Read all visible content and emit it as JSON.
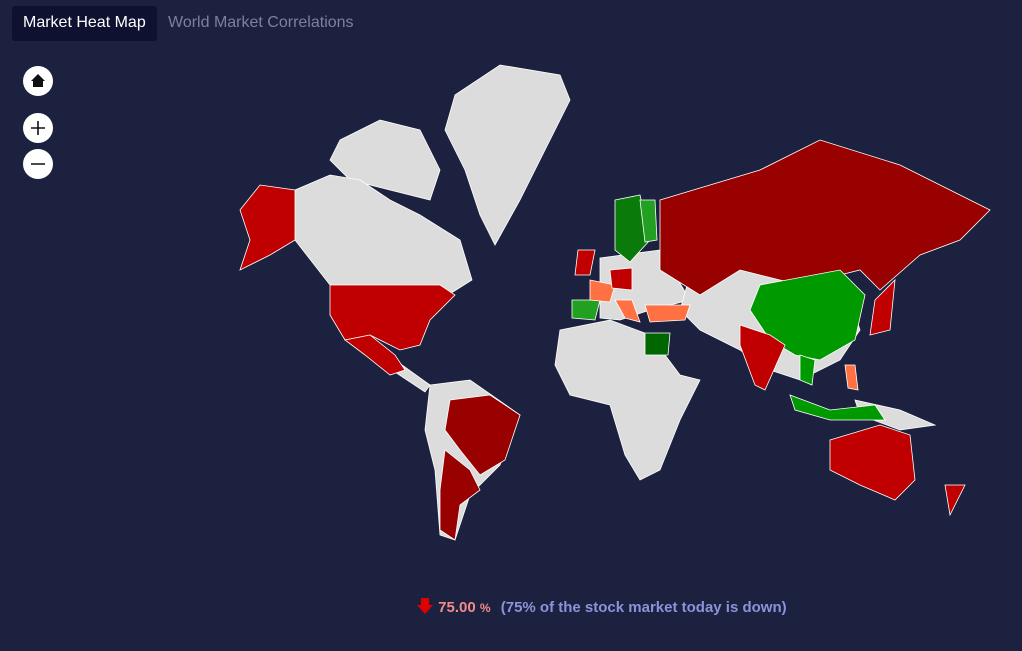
{
  "tabs": [
    "Market Heat Map",
    "World Market Correlations"
  ],
  "summary": {
    "percent": "75.00",
    "unit": "%",
    "note": "(75% of the stock market today is down)"
  }
}
